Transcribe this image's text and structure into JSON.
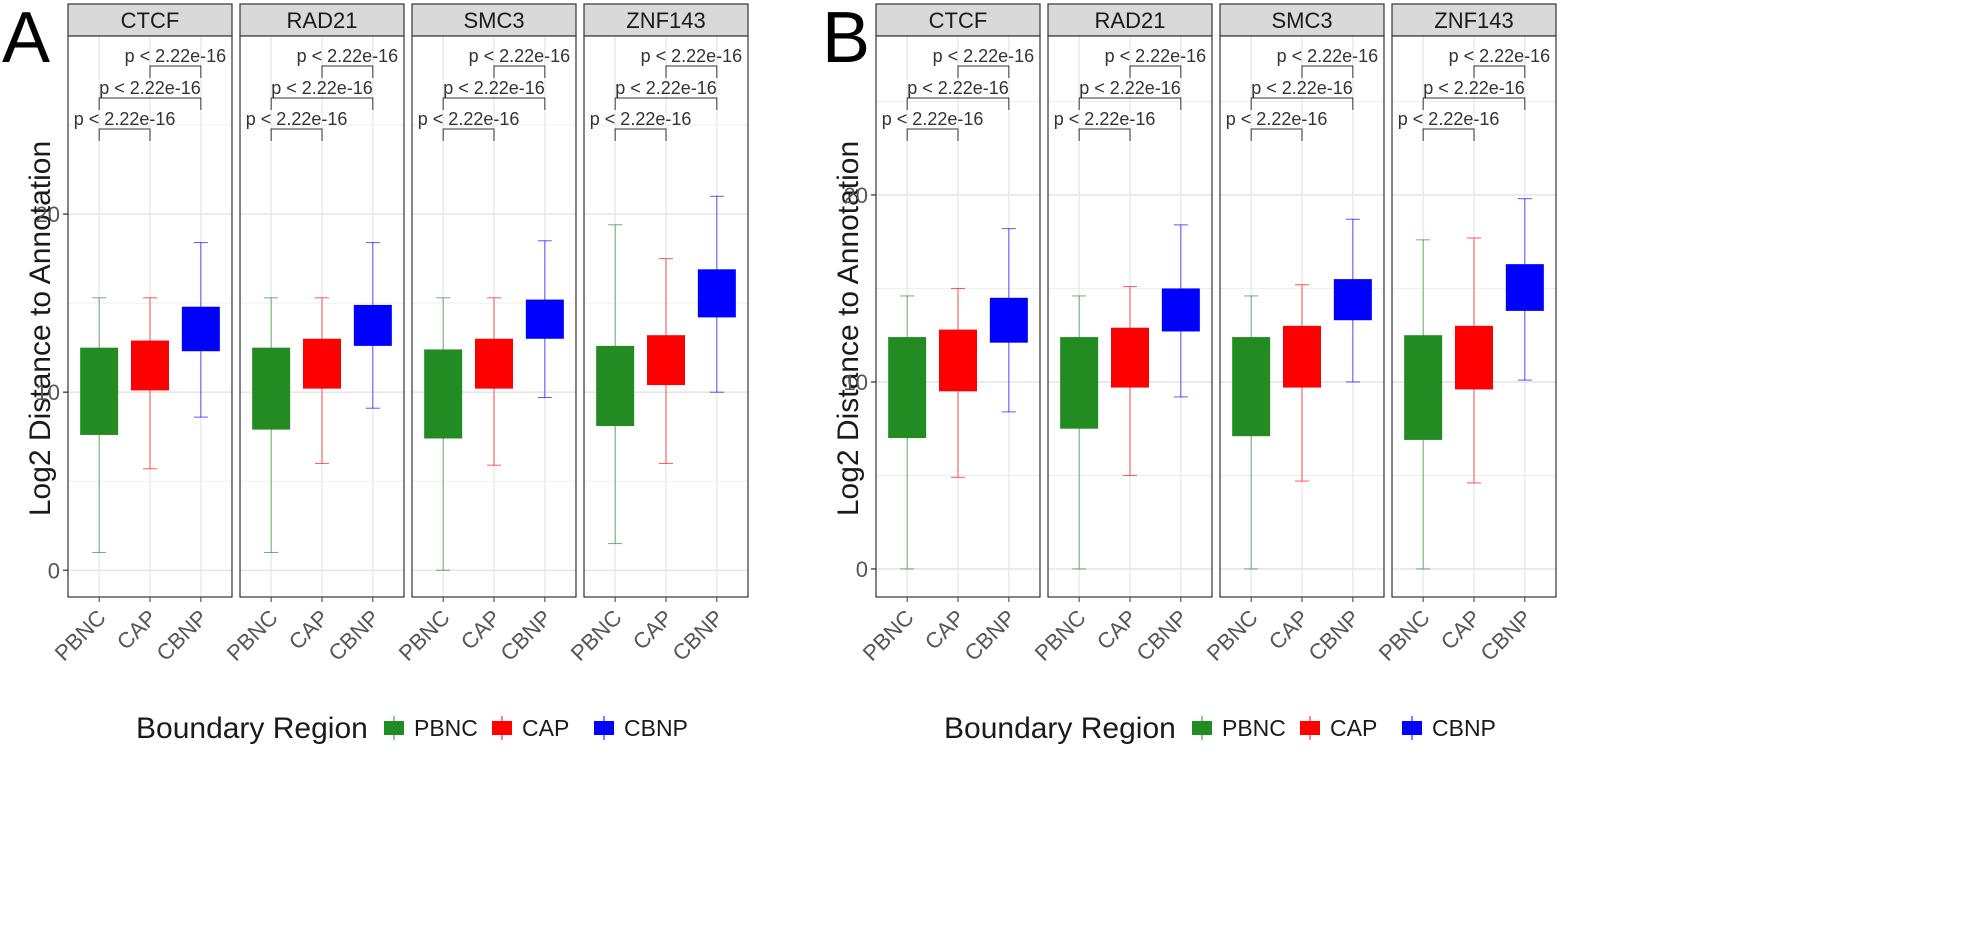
{
  "colors": {
    "PBNC": "#228B22",
    "CAP": "#FF0000",
    "CBNP": "#0000FF"
  },
  "chart_data": [
    {
      "panel_label": "A",
      "type": "boxplot",
      "ylabel": "Log2 Distance to Annotation",
      "yticks": [
        0,
        10,
        20
      ],
      "ylim": [
        -1.5,
        30
      ],
      "categories": [
        "PBNC",
        "CAP",
        "CBNP"
      ],
      "legend_title": "Boundary Region",
      "facets": [
        {
          "name": "CTCF",
          "boxes": [
            {
              "category": "PBNC",
              "min": 1.0,
              "q1": 7.6,
              "q3": 12.5,
              "max": 15.3
            },
            {
              "category": "CAP",
              "min": 5.7,
              "q1": 10.1,
              "q3": 12.9,
              "max": 15.3
            },
            {
              "category": "CBNP",
              "min": 8.6,
              "q1": 12.3,
              "q3": 14.8,
              "max": 18.4
            }
          ],
          "pvalues": [
            "p < 2.22e-16",
            "p < 2.22e-16",
            "p < 2.22e-16"
          ]
        },
        {
          "name": "RAD21",
          "boxes": [
            {
              "category": "PBNC",
              "min": 1.0,
              "q1": 7.9,
              "q3": 12.5,
              "max": 15.3
            },
            {
              "category": "CAP",
              "min": 6.0,
              "q1": 10.2,
              "q3": 13.0,
              "max": 15.3
            },
            {
              "category": "CBNP",
              "min": 9.1,
              "q1": 12.6,
              "q3": 14.9,
              "max": 18.4
            }
          ],
          "pvalues": [
            "p < 2.22e-16",
            "p < 2.22e-16",
            "p < 2.22e-16"
          ]
        },
        {
          "name": "SMC3",
          "boxes": [
            {
              "category": "PBNC",
              "min": 0.0,
              "q1": 7.4,
              "q3": 12.4,
              "max": 15.3
            },
            {
              "category": "CAP",
              "min": 5.9,
              "q1": 10.2,
              "q3": 13.0,
              "max": 15.3
            },
            {
              "category": "CBNP",
              "min": 9.7,
              "q1": 13.0,
              "q3": 15.2,
              "max": 18.5
            }
          ],
          "pvalues": [
            "p < 2.22e-16",
            "p < 2.22e-16",
            "p < 2.22e-16"
          ]
        },
        {
          "name": "ZNF143",
          "boxes": [
            {
              "category": "PBNC",
              "min": 1.5,
              "q1": 8.1,
              "q3": 12.6,
              "max": 19.4
            },
            {
              "category": "CAP",
              "min": 6.0,
              "q1": 10.4,
              "q3": 13.2,
              "max": 17.5
            },
            {
              "category": "CBNP",
              "min": 10.0,
              "q1": 14.2,
              "q3": 16.9,
              "max": 21.0
            }
          ],
          "pvalues": [
            "p < 2.22e-16",
            "p < 2.22e-16",
            "p < 2.22e-16"
          ]
        }
      ]
    },
    {
      "panel_label": "B",
      "type": "boxplot",
      "ylabel": "Log2 Distance to Annotation",
      "yticks": [
        0,
        10,
        20
      ],
      "ylim": [
        -1.5,
        28.5
      ],
      "categories": [
        "PBNC",
        "CAP",
        "CBNP"
      ],
      "legend_title": "Boundary Region",
      "facets": [
        {
          "name": "CTCF",
          "boxes": [
            {
              "category": "PBNC",
              "min": 0.0,
              "q1": 7.0,
              "q3": 12.4,
              "max": 14.6
            },
            {
              "category": "CAP",
              "min": 4.9,
              "q1": 9.5,
              "q3": 12.8,
              "max": 15.0
            },
            {
              "category": "CBNP",
              "min": 8.4,
              "q1": 12.1,
              "q3": 14.5,
              "max": 18.2
            }
          ],
          "pvalues": [
            "p < 2.22e-16",
            "p < 2.22e-16",
            "p < 2.22e-16"
          ]
        },
        {
          "name": "RAD21",
          "boxes": [
            {
              "category": "PBNC",
              "min": 0.0,
              "q1": 7.5,
              "q3": 12.4,
              "max": 14.6
            },
            {
              "category": "CAP",
              "min": 5.0,
              "q1": 9.7,
              "q3": 12.9,
              "max": 15.1
            },
            {
              "category": "CBNP",
              "min": 9.2,
              "q1": 12.7,
              "q3": 15.0,
              "max": 18.4
            }
          ],
          "pvalues": [
            "p < 2.22e-16",
            "p < 2.22e-16",
            "p < 2.22e-16"
          ]
        },
        {
          "name": "SMC3",
          "boxes": [
            {
              "category": "PBNC",
              "min": 0.0,
              "q1": 7.1,
              "q3": 12.4,
              "max": 14.6
            },
            {
              "category": "CAP",
              "min": 4.7,
              "q1": 9.7,
              "q3": 13.0,
              "max": 15.2
            },
            {
              "category": "CBNP",
              "min": 10.0,
              "q1": 13.3,
              "q3": 15.5,
              "max": 18.7
            }
          ],
          "pvalues": [
            "p < 2.22e-16",
            "p < 2.22e-16",
            "p < 2.22e-16"
          ]
        },
        {
          "name": "ZNF143",
          "boxes": [
            {
              "category": "PBNC",
              "min": 0.0,
              "q1": 6.9,
              "q3": 12.5,
              "max": 17.6
            },
            {
              "category": "CAP",
              "min": 4.6,
              "q1": 9.6,
              "q3": 13.0,
              "max": 17.7
            },
            {
              "category": "CBNP",
              "min": 10.1,
              "q1": 13.8,
              "q3": 16.3,
              "max": 19.8
            }
          ],
          "pvalues": [
            "p < 2.22e-16",
            "p < 2.22e-16",
            "p < 2.22e-16"
          ]
        }
      ]
    }
  ]
}
